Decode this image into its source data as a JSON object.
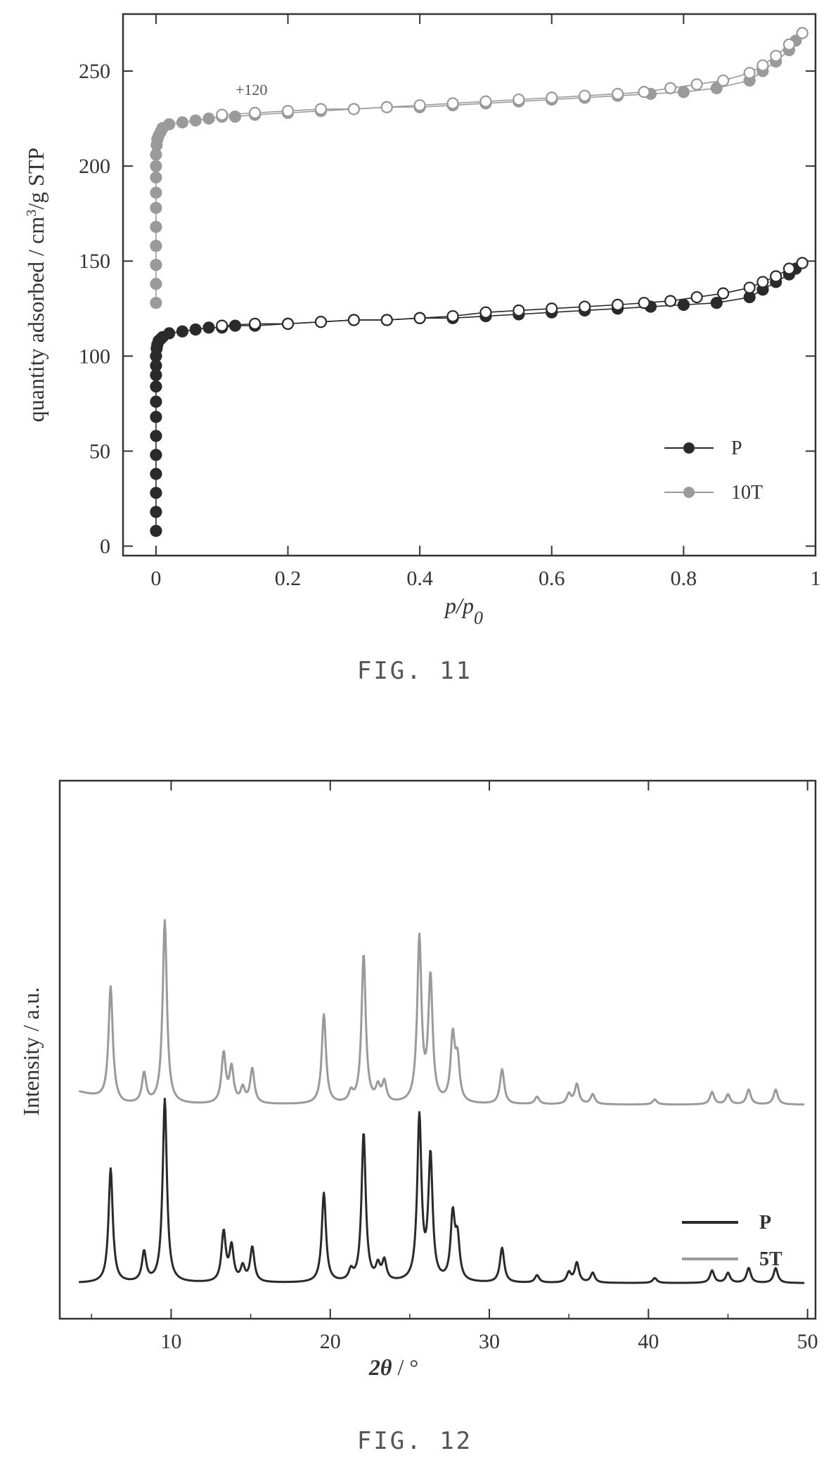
{
  "figures": {
    "fig11": {
      "caption": "FIG. 11"
    },
    "fig12": {
      "caption": "FIG. 12"
    }
  },
  "colors": {
    "P": "#2a2a2a",
    "T": "#9a9a9a",
    "axis": "#333333"
  },
  "chart_data": [
    {
      "type": "line",
      "title": "",
      "xlabel_base": "p/p",
      "xlabel_sub": "0",
      "ylabel_base": "quantity adsorbed / cm",
      "ylabel_sup": "3",
      "ylabel_tail": "/g STP",
      "xlim": [
        -0.05,
        1.0
      ],
      "ylim": [
        -5,
        280
      ],
      "xticks": [
        0,
        0.2,
        0.4,
        0.6,
        0.8,
        1
      ],
      "xtick_labels": [
        "0",
        "0.2",
        "0.4",
        "0.6",
        "0.8",
        "1"
      ],
      "yticks": [
        0,
        50,
        100,
        150,
        200,
        250
      ],
      "ytick_labels": [
        "0",
        "50",
        "100",
        "150",
        "200",
        "250"
      ],
      "annotation": "+120",
      "legend_position": "bottom-right",
      "series": [
        {
          "name": "P",
          "markers": "filled-circle",
          "adsorption": {
            "x": [
              0.0,
              0.0,
              0.0,
              0.0,
              0.0,
              0.0,
              0.0,
              0.0,
              0.0,
              0.0,
              0.0,
              0.0,
              0.001,
              0.002,
              0.004,
              0.007,
              0.01,
              0.02,
              0.04,
              0.06,
              0.08,
              0.1,
              0.12,
              0.15,
              0.2,
              0.25,
              0.3,
              0.35,
              0.4,
              0.45,
              0.5,
              0.55,
              0.6,
              0.65,
              0.7,
              0.75,
              0.8,
              0.85,
              0.9,
              0.92,
              0.94,
              0.96,
              0.97,
              0.98
            ],
            "y": [
              8,
              18,
              28,
              38,
              48,
              58,
              68,
              76,
              84,
              90,
              95,
              100,
              104,
              106,
              108,
              109,
              110,
              112,
              113,
              114,
              115,
              115,
              116,
              116,
              117,
              118,
              119,
              119,
              120,
              120,
              121,
              122,
              123,
              124,
              125,
              126,
              127,
              128,
              131,
              135,
              139,
              143,
              146,
              149
            ]
          },
          "desorption": {
            "x": [
              0.98,
              0.96,
              0.94,
              0.92,
              0.9,
              0.86,
              0.82,
              0.78,
              0.74,
              0.7,
              0.65,
              0.6,
              0.55,
              0.5,
              0.45,
              0.4,
              0.35,
              0.3,
              0.25,
              0.2,
              0.15,
              0.1
            ],
            "y": [
              149,
              146,
              142,
              139,
              136,
              133,
              131,
              129,
              128,
              127,
              126,
              125,
              124,
              123,
              121,
              120,
              119,
              119,
              118,
              117,
              117,
              116
            ]
          }
        },
        {
          "name": "10T",
          "markers": "filled-circle",
          "adsorption": {
            "x": [
              0.0,
              0.0,
              0.0,
              0.0,
              0.0,
              0.0,
              0.0,
              0.0,
              0.0,
              0.0,
              0.001,
              0.002,
              0.004,
              0.007,
              0.01,
              0.02,
              0.04,
              0.06,
              0.08,
              0.1,
              0.12,
              0.15,
              0.2,
              0.25,
              0.3,
              0.35,
              0.4,
              0.45,
              0.5,
              0.55,
              0.6,
              0.65,
              0.7,
              0.75,
              0.8,
              0.85,
              0.9,
              0.92,
              0.94,
              0.96,
              0.97,
              0.98
            ],
            "y": [
              128,
              138,
              148,
              158,
              168,
              178,
              186,
              194,
              200,
              206,
              211,
              214,
              216,
              218,
              220,
              222,
              223,
              224,
              225,
              226,
              226,
              227,
              228,
              229,
              230,
              231,
              231,
              232,
              233,
              234,
              235,
              236,
              237,
              238,
              239,
              241,
              245,
              250,
              255,
              261,
              266,
              270
            ]
          },
          "desorption": {
            "x": [
              0.98,
              0.96,
              0.94,
              0.92,
              0.9,
              0.86,
              0.82,
              0.78,
              0.74,
              0.7,
              0.65,
              0.6,
              0.55,
              0.5,
              0.45,
              0.4,
              0.35,
              0.3,
              0.25,
              0.2,
              0.15,
              0.1
            ],
            "y": [
              270,
              264,
              258,
              253,
              249,
              245,
              243,
              241,
              239,
              238,
              237,
              236,
              235,
              234,
              233,
              232,
              231,
              230,
              230,
              229,
              228,
              227
            ]
          }
        }
      ]
    },
    {
      "type": "line",
      "title": "",
      "xlabel_base": "2",
      "xlabel_theta": "θ",
      "xlabel_tail": " / °",
      "ylabel": "Intensity / a.u.",
      "xlim": [
        3,
        50.5
      ],
      "ylim": [
        0,
        100
      ],
      "xticks": [
        10,
        20,
        30,
        40,
        50
      ],
      "xtick_labels": [
        "10",
        "20",
        "30",
        "40",
        "50"
      ],
      "yticks": [],
      "legend_position": "bottom-right",
      "baseline": 1.5,
      "offset": 36,
      "peaks": [
        {
          "x": 6.2,
          "h": 23
        },
        {
          "x": 8.3,
          "h": 6
        },
        {
          "x": 9.6,
          "h": 37
        },
        {
          "x": 13.3,
          "h": 10
        },
        {
          "x": 13.8,
          "h": 7
        },
        {
          "x": 14.5,
          "h": 3
        },
        {
          "x": 15.1,
          "h": 7
        },
        {
          "x": 19.6,
          "h": 18
        },
        {
          "x": 21.3,
          "h": 2
        },
        {
          "x": 22.1,
          "h": 30
        },
        {
          "x": 23.0,
          "h": 3
        },
        {
          "x": 23.4,
          "h": 4
        },
        {
          "x": 25.6,
          "h": 33
        },
        {
          "x": 26.3,
          "h": 25
        },
        {
          "x": 27.7,
          "h": 13
        },
        {
          "x": 28.0,
          "h": 8
        },
        {
          "x": 30.8,
          "h": 7
        },
        {
          "x": 33.0,
          "h": 1.5
        },
        {
          "x": 35.0,
          "h": 2
        },
        {
          "x": 35.5,
          "h": 4
        },
        {
          "x": 36.5,
          "h": 2
        },
        {
          "x": 40.4,
          "h": 1
        },
        {
          "x": 44.0,
          "h": 2.5
        },
        {
          "x": 45.0,
          "h": 2
        },
        {
          "x": 46.3,
          "h": 3
        },
        {
          "x": 48.0,
          "h": 3
        }
      ],
      "series": [
        {
          "name": "P"
        },
        {
          "name": "5T"
        }
      ]
    }
  ]
}
